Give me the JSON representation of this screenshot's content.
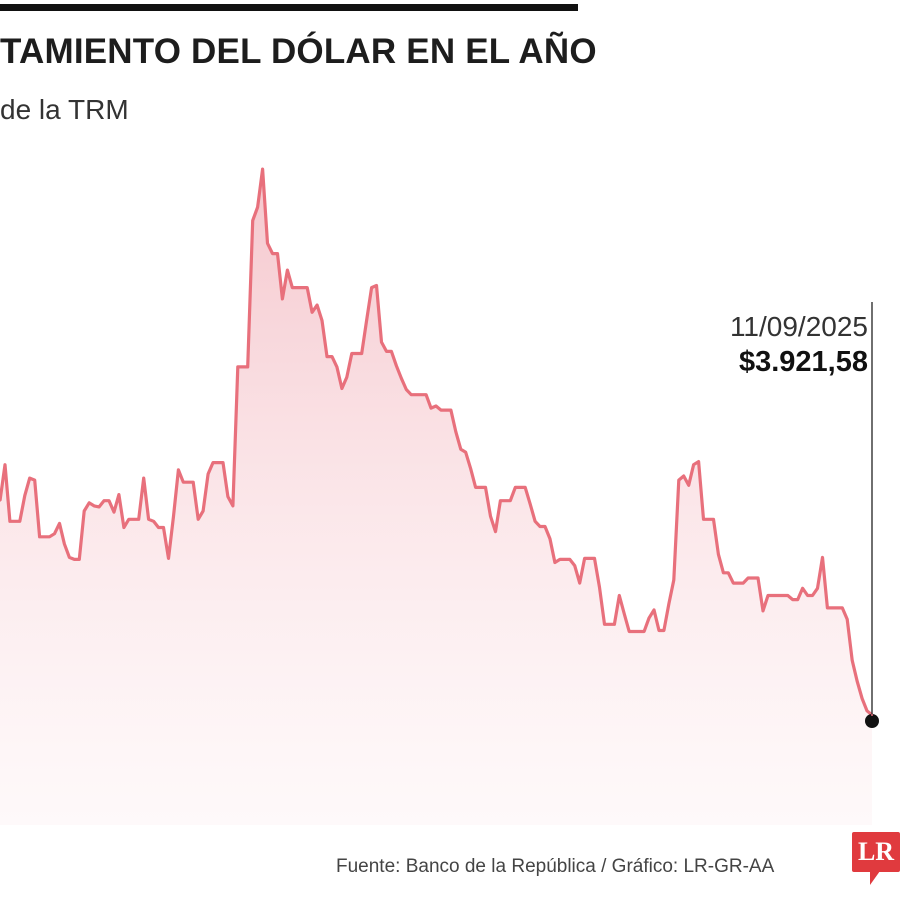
{
  "header": {
    "title": "TAMIENTO DEL DÓLAR EN EL AÑO",
    "subtitle": "de la TRM"
  },
  "source": "Fuente: Banco de la República / Gráfico: LR-GR-AA",
  "logo": "LR",
  "colors": {
    "line": "#e8707c",
    "fill": "#f6cfd4",
    "marker": "#111111",
    "brand": "#e03a3e"
  },
  "chart_data": {
    "type": "area",
    "title": "TAMIENTO DEL DÓLAR EN EL AÑO",
    "subtitle": "de la TRM",
    "xlabel": "",
    "ylabel": "",
    "grid": false,
    "ylim": [
      3890,
      4560
    ],
    "values": [
      4200,
      4235,
      4180,
      4180,
      4180,
      4205,
      4222,
      4220,
      4165,
      4165,
      4165,
      4168,
      4178,
      4158,
      4145,
      4143,
      4143,
      4190,
      4198,
      4195,
      4194,
      4200,
      4200,
      4189,
      4206,
      4174,
      4182,
      4182,
      4182,
      4222,
      4182,
      4180,
      4174,
      4174,
      4144,
      4184,
      4230,
      4218,
      4218,
      4218,
      4182,
      4190,
      4226,
      4237,
      4237,
      4237,
      4204,
      4195,
      4330,
      4330,
      4330,
      4472,
      4485,
      4522,
      4450,
      4440,
      4440,
      4396,
      4424,
      4407,
      4407,
      4407,
      4407,
      4383,
      4390,
      4375,
      4340,
      4340,
      4330,
      4309,
      4320,
      4343,
      4343,
      4343,
      4375,
      4407,
      4409,
      4354,
      4345,
      4345,
      4331,
      4319,
      4308,
      4303,
      4303,
      4303,
      4303,
      4290,
      4292,
      4288,
      4288,
      4288,
      4267,
      4250,
      4247,
      4231,
      4213,
      4213,
      4213,
      4185,
      4170,
      4200,
      4200,
      4200,
      4213,
      4213,
      4213,
      4197,
      4180,
      4175,
      4175,
      4163,
      4140,
      4143,
      4143,
      4143,
      4137,
      4120,
      4144,
      4144,
      4144,
      4116,
      4080,
      4080,
      4080,
      4108,
      4090,
      4073,
      4073,
      4073,
      4073,
      4086,
      4094,
      4074,
      4074,
      4100,
      4123,
      4220,
      4224,
      4215,
      4235,
      4238,
      4182,
      4182,
      4182,
      4148,
      4130,
      4130,
      4120,
      4120,
      4120,
      4125,
      4125,
      4125,
      4093,
      4108,
      4108,
      4108,
      4108,
      4108,
      4104,
      4104,
      4115,
      4108,
      4108,
      4115,
      4145,
      4096,
      4096,
      4096,
      4096,
      4085,
      4045,
      4025,
      4008,
      3996,
      3992
    ],
    "annotations": [
      {
        "date": "11/09/2025",
        "value": "$3.921,58"
      }
    ]
  }
}
